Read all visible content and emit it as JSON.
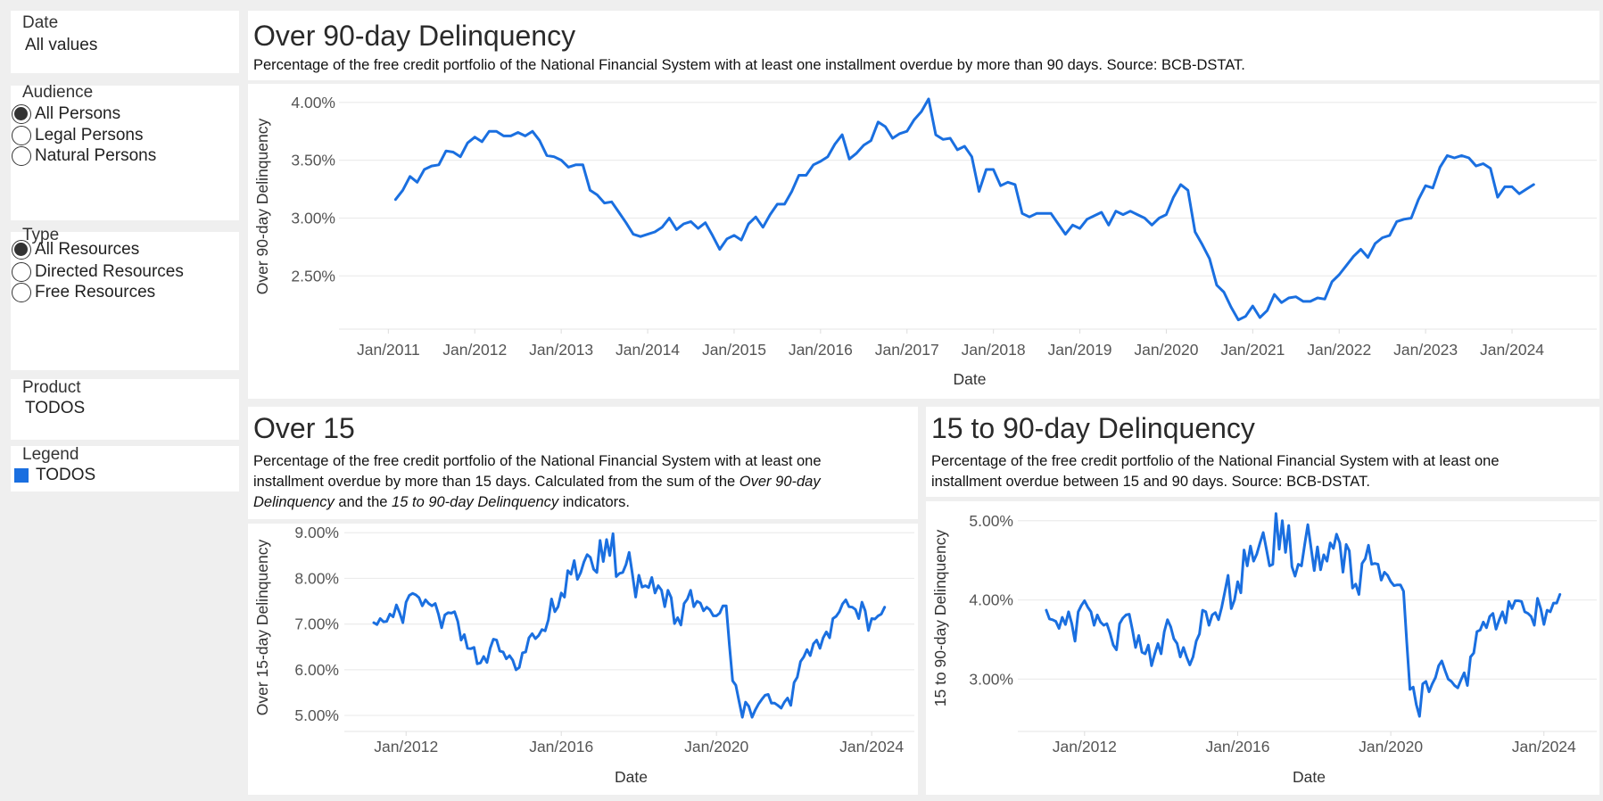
{
  "filters": {
    "date": {
      "label": "Date",
      "value": "All values"
    },
    "audience": {
      "label": "Audience",
      "options": [
        "All Persons",
        "Legal Persons",
        "Natural Persons"
      ],
      "selected": "All Persons"
    },
    "type": {
      "label": "Type",
      "options": [
        "All Resources",
        "Directed Resources",
        "Free Resources"
      ],
      "selected": "All Resources"
    },
    "product": {
      "label": "Product",
      "value": "TODOS"
    },
    "legend": {
      "label": "Legend",
      "item": "TODOS",
      "color": "#1a6fe0"
    }
  },
  "panels": {
    "over90": {
      "title": "Over 90-day Delinquency",
      "desc": "Percentage of the free credit portfolio of the National Financial System with at least one installment overdue by more than 90 days. Source: BCB-DSTAT."
    },
    "over15": {
      "title": "Over 15",
      "desc_line1": "Percentage of the free credit portfolio of the National Financial System with at least one",
      "desc_line2_pre": "installment overdue by more than 15 days. Calculated from the sum of the ",
      "desc_em1": "Over 90-day",
      "desc_em1b": "Delinquency",
      "desc_mid": " and the ",
      "desc_em2": "15 to 90-day Delinquency",
      "desc_post": " indicators."
    },
    "d15to90": {
      "title": "15 to 90-day Delinquency",
      "desc_line1": "Percentage of the free credit portfolio of the National Financial System with at least one",
      "desc_line2": "installment overdue between 15 and 90 days. Source: BCB-DSTAT."
    }
  },
  "chart_data": [
    {
      "type": "line",
      "xlabel": "Date",
      "ylabel": "Over 90-day Delinquency",
      "x_start": "2011-02",
      "frequency": "monthly",
      "xlim": [
        2010.47,
        2024.98
      ],
      "ylim": [
        2.04,
        4.16
      ],
      "xticks": [
        "Jan/2011",
        "Jan/2012",
        "Jan/2013",
        "Jan/2014",
        "Jan/2015",
        "Jan/2016",
        "Jan/2017",
        "Jan/2018",
        "Jan/2019",
        "Jan/2020",
        "Jan/2021",
        "Jan/2022",
        "Jan/2023",
        "Jan/2024"
      ],
      "yticks": [
        "4.00%",
        "3.50%",
        "3.00%",
        "2.50%"
      ],
      "grid": true,
      "color": "#1a6fe0",
      "values": [
        3.16,
        3.24,
        3.36,
        3.31,
        3.42,
        3.45,
        3.46,
        3.58,
        3.57,
        3.53,
        3.65,
        3.7,
        3.66,
        3.75,
        3.75,
        3.71,
        3.71,
        3.74,
        3.71,
        3.75,
        3.67,
        3.54,
        3.53,
        3.5,
        3.44,
        3.46,
        3.46,
        3.24,
        3.2,
        3.13,
        3.14,
        3.05,
        2.96,
        2.86,
        2.84,
        2.86,
        2.88,
        2.92,
        3.0,
        2.9,
        2.95,
        2.97,
        2.91,
        2.96,
        2.85,
        2.73,
        2.82,
        2.85,
        2.81,
        2.95,
        3.01,
        2.92,
        3.03,
        3.12,
        3.12,
        3.23,
        3.37,
        3.37,
        3.46,
        3.49,
        3.53,
        3.64,
        3.72,
        3.51,
        3.56,
        3.63,
        3.67,
        3.83,
        3.79,
        3.69,
        3.73,
        3.75,
        3.85,
        3.92,
        4.03,
        3.72,
        3.68,
        3.69,
        3.59,
        3.62,
        3.53,
        3.23,
        3.42,
        3.42,
        3.28,
        3.31,
        3.29,
        3.04,
        3.01,
        3.04,
        3.04,
        3.04,
        2.95,
        2.86,
        2.94,
        2.91,
        2.99,
        3.02,
        3.05,
        2.94,
        3.06,
        3.03,
        3.06,
        3.03,
        3.0,
        2.94,
        3.0,
        3.03,
        3.18,
        3.29,
        3.24,
        2.88,
        2.77,
        2.65,
        2.42,
        2.36,
        2.23,
        2.12,
        2.15,
        2.24,
        2.14,
        2.2,
        2.34,
        2.27,
        2.31,
        2.32,
        2.28,
        2.28,
        2.31,
        2.3,
        2.45,
        2.51,
        2.59,
        2.67,
        2.73,
        2.66,
        2.78,
        2.83,
        2.85,
        2.97,
        2.99,
        3.0,
        3.16,
        3.28,
        3.26,
        3.44,
        3.54,
        3.52,
        3.54,
        3.52,
        3.45,
        3.47,
        3.43,
        3.18,
        3.27,
        3.27,
        3.21,
        3.25,
        3.29
      ]
    },
    {
      "type": "line",
      "xlabel": "Date",
      "ylabel": "Over 15-day Delinquency",
      "x_start": "2011-03",
      "frequency": "monthly",
      "xlim": [
        2010.5,
        2025.1
      ],
      "ylim": [
        4.65,
        9.2
      ],
      "xticks": [
        "Jan/2012",
        "Jan/2016",
        "Jan/2020",
        "Jan/2024"
      ],
      "yticks": [
        "9.00%",
        "8.00%",
        "7.00%",
        "6.00%",
        "5.00%"
      ],
      "grid": true,
      "color": "#1a6fe0",
      "values": [
        7.03,
        6.99,
        7.12,
        7.05,
        7.06,
        7.22,
        7.16,
        7.42,
        7.25,
        7.03,
        7.48,
        7.63,
        7.67,
        7.64,
        7.58,
        7.4,
        7.53,
        7.45,
        7.4,
        7.45,
        7.22,
        6.92,
        7.2,
        7.25,
        7.24,
        7.27,
        7.06,
        6.65,
        6.77,
        6.47,
        6.46,
        6.49,
        6.13,
        6.15,
        6.29,
        6.16,
        6.47,
        6.67,
        6.65,
        6.41,
        6.39,
        6.24,
        6.31,
        6.21,
        6.0,
        6.05,
        6.37,
        6.39,
        6.7,
        6.79,
        6.68,
        6.75,
        6.88,
        6.85,
        7.09,
        7.55,
        7.27,
        7.38,
        7.68,
        7.59,
        8.17,
        8.09,
        8.39,
        7.98,
        8.13,
        8.36,
        8.52,
        8.46,
        8.2,
        8.13,
        8.83,
        8.37,
        8.85,
        8.5,
        8.98,
        8.04,
        8.11,
        8.13,
        8.3,
        8.57,
        8.1,
        7.59,
        8.07,
        7.81,
        7.84,
        7.8,
        8.02,
        7.68,
        7.84,
        7.74,
        7.38,
        7.74,
        7.58,
        7.01,
        7.14,
        6.98,
        7.45,
        7.55,
        7.74,
        7.38,
        7.5,
        7.46,
        7.29,
        7.37,
        7.31,
        7.18,
        7.18,
        7.24,
        7.4,
        7.4,
        6.54,
        5.76,
        5.66,
        5.3,
        4.96,
        5.29,
        5.2,
        4.96,
        5.12,
        5.25,
        5.35,
        5.44,
        5.46,
        5.27,
        5.27,
        5.22,
        5.16,
        5.29,
        5.38,
        5.22,
        5.72,
        5.84,
        6.18,
        6.28,
        6.44,
        6.31,
        6.57,
        6.65,
        6.47,
        6.7,
        6.83,
        6.7,
        7.12,
        7.17,
        7.27,
        7.44,
        7.53,
        7.38,
        7.37,
        7.32,
        7.12,
        7.48,
        7.29,
        6.86,
        7.12,
        7.11,
        7.18,
        7.22,
        7.37
      ]
    },
    {
      "type": "line",
      "xlabel": "Date",
      "ylabel": "15 to 90-day Delinquency",
      "x_start": "2011-01",
      "frequency": "monthly",
      "xlim": [
        2010.35,
        2025.38
      ],
      "ylim": [
        2.34,
        5.2
      ],
      "xticks": [
        "Jan/2012",
        "Jan/2016",
        "Jan/2020",
        "Jan/2024"
      ],
      "yticks": [
        "5.00%",
        "4.00%",
        "3.00%"
      ],
      "grid": true,
      "color": "#1a6fe0",
      "values": [
        3.87,
        3.76,
        3.75,
        3.73,
        3.64,
        3.78,
        3.69,
        3.85,
        3.7,
        3.48,
        3.85,
        3.93,
        3.99,
        3.91,
        3.85,
        3.68,
        3.81,
        3.72,
        3.68,
        3.7,
        3.58,
        3.43,
        3.37,
        3.7,
        3.77,
        3.81,
        3.82,
        3.62,
        3.4,
        3.55,
        3.34,
        3.32,
        3.43,
        3.17,
        3.32,
        3.45,
        3.32,
        3.6,
        3.75,
        3.66,
        3.51,
        3.45,
        3.28,
        3.4,
        3.28,
        3.18,
        3.28,
        3.48,
        3.57,
        3.87,
        3.85,
        3.68,
        3.81,
        3.84,
        3.75,
        3.91,
        4.11,
        4.31,
        3.89,
        4.0,
        4.23,
        4.09,
        4.63,
        4.43,
        4.68,
        4.49,
        4.58,
        4.72,
        4.85,
        4.64,
        4.43,
        4.45,
        5.09,
        4.64,
        5.0,
        4.6,
        4.94,
        4.42,
        4.3,
        4.45,
        4.43,
        4.7,
        4.95,
        4.66,
        4.37,
        4.67,
        4.38,
        4.57,
        4.49,
        4.72,
        4.65,
        4.83,
        4.72,
        4.35,
        4.7,
        4.62,
        4.15,
        4.2,
        4.07,
        4.46,
        4.52,
        4.69,
        4.45,
        4.46,
        4.45,
        4.25,
        4.35,
        4.31,
        4.23,
        4.18,
        4.19,
        4.19,
        4.11,
        3.47,
        2.87,
        2.9,
        2.68,
        2.53,
        2.94,
        2.97,
        2.84,
        2.94,
        3.02,
        3.17,
        3.23,
        3.11,
        3.0,
        2.97,
        2.92,
        2.89,
        2.99,
        3.08,
        2.92,
        3.28,
        3.33,
        3.6,
        3.62,
        3.72,
        3.65,
        3.79,
        3.83,
        3.63,
        3.75,
        3.85,
        3.71,
        3.98,
        3.89,
        3.99,
        3.99,
        3.98,
        3.85,
        3.83,
        3.79,
        3.68,
        4.02,
        3.89,
        3.69,
        3.87,
        3.85,
        3.96,
        3.96,
        4.07
      ]
    }
  ]
}
